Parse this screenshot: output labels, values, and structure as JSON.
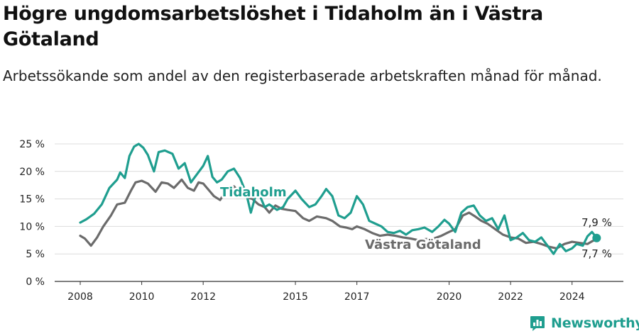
{
  "header": {
    "title": "Högre ungdomsarbetslöshet i Tidaholm än i Västra Götaland",
    "subtitle": "Arbetssökande som andel av den registerbaserade arbetskraften månad för månad."
  },
  "brand": {
    "name": "Newsworthy",
    "icon": "newsworthy-logo-icon",
    "color": "#1f9e8f"
  },
  "chart_data": {
    "type": "line",
    "title": "Högre ungdomsarbetslöshet i Tidaholm än i Västra Götaland",
    "subtitle": "Arbetssökande som andel av den registerbaserade arbetskraften månad för månad.",
    "xlabel": "",
    "ylabel": "",
    "ylim": [
      0,
      25
    ],
    "y_ticks": [
      0,
      5,
      10,
      15,
      20,
      25
    ],
    "y_tick_labels": [
      "0 %",
      "5 %",
      "10 %",
      "15 %",
      "20 %",
      "25 %"
    ],
    "x_ticks": [
      2008,
      2010,
      2012,
      2015,
      2017,
      2020,
      2022,
      2024
    ],
    "x_tick_labels": [
      "2008",
      "2010",
      "2012",
      "2015",
      "2017",
      "2020",
      "2022",
      "2024"
    ],
    "xlim": [
      2008,
      2025
    ],
    "grid": true,
    "series": [
      {
        "name": "Tidaholm",
        "color": "#1f9e8f",
        "x": [
          2008.0,
          2008.2,
          2008.45,
          2008.7,
          2008.95,
          2009.2,
          2009.3,
          2009.45,
          2009.6,
          2009.75,
          2009.9,
          2010.05,
          2010.2,
          2010.4,
          2010.55,
          2010.75,
          2011.0,
          2011.2,
          2011.4,
          2011.6,
          2011.8,
          2012.0,
          2012.15,
          2012.3,
          2012.45,
          2012.6,
          2012.8,
          2013.0,
          2013.2,
          2013.4,
          2013.55,
          2013.75,
          2013.85,
          2014.0,
          2014.15,
          2014.4,
          2014.6,
          2014.75,
          2015.0,
          2015.2,
          2015.45,
          2015.65,
          2015.85,
          2016.0,
          2016.2,
          2016.4,
          2016.6,
          2016.8,
          2017.0,
          2017.2,
          2017.4,
          2017.6,
          2017.8,
          2018.0,
          2018.2,
          2018.4,
          2018.6,
          2018.8,
          2019.0,
          2019.2,
          2019.45,
          2019.65,
          2019.85,
          2020.0,
          2020.2,
          2020.4,
          2020.6,
          2020.8,
          2021.0,
          2021.2,
          2021.4,
          2021.6,
          2021.8,
          2022.0,
          2022.2,
          2022.4,
          2022.6,
          2022.8,
          2023.0,
          2023.2,
          2023.4,
          2023.6,
          2023.8,
          2024.0,
          2024.15,
          2024.35,
          2024.5,
          2024.65,
          2024.8
        ],
        "values": [
          10.7,
          11.3,
          12.3,
          14.0,
          17.0,
          18.5,
          19.8,
          18.8,
          22.8,
          24.5,
          25.0,
          24.3,
          23.0,
          20.0,
          23.5,
          23.8,
          23.2,
          20.5,
          21.5,
          18.0,
          19.5,
          21.0,
          22.8,
          19.0,
          18.0,
          18.5,
          20.0,
          20.5,
          18.8,
          16.0,
          12.5,
          16.5,
          15.5,
          13.5,
          14.0,
          13.0,
          13.5,
          15.0,
          16.5,
          15.0,
          13.5,
          14.0,
          15.5,
          16.8,
          15.5,
          12.0,
          11.5,
          12.5,
          15.5,
          14.0,
          11.0,
          10.5,
          10.0,
          9.0,
          8.8,
          9.2,
          8.5,
          9.3,
          9.5,
          9.8,
          9.0,
          10.0,
          11.2,
          10.5,
          9.0,
          12.5,
          13.5,
          13.8,
          12.0,
          11.0,
          11.5,
          9.5,
          12.0,
          7.5,
          8.0,
          8.8,
          7.5,
          7.2,
          8.0,
          6.5,
          5.0,
          6.8,
          5.5,
          6.0,
          6.8,
          6.5,
          8.2,
          9.0,
          7.9
        ]
      },
      {
        "name": "Västra Götaland",
        "color": "#6b6b6b",
        "x": [
          2008.0,
          2008.15,
          2008.35,
          2008.55,
          2008.75,
          2009.0,
          2009.2,
          2009.45,
          2009.65,
          2009.8,
          2010.0,
          2010.2,
          2010.45,
          2010.65,
          2010.85,
          2011.05,
          2011.3,
          2011.5,
          2011.7,
          2011.85,
          2012.0,
          2012.2,
          2012.35,
          2012.55,
          2012.8,
          2013.0,
          2013.2,
          2013.45,
          2013.6,
          2013.8,
          2014.0,
          2014.15,
          2014.35,
          2014.55,
          2014.75,
          2015.0,
          2015.25,
          2015.45,
          2015.7,
          2016.0,
          2016.2,
          2016.45,
          2016.65,
          2016.85,
          2017.0,
          2017.25,
          2017.5,
          2017.75,
          2018.0,
          2018.25,
          2018.5,
          2018.75,
          2019.0,
          2019.25,
          2019.5,
          2019.75,
          2020.0,
          2020.2,
          2020.45,
          2020.65,
          2020.85,
          2021.05,
          2021.25,
          2021.5,
          2021.75,
          2022.0,
          2022.25,
          2022.5,
          2022.75,
          2023.0,
          2023.25,
          2023.5,
          2023.75,
          2024.0,
          2024.25,
          2024.5,
          2024.65,
          2024.8
        ],
        "values": [
          8.3,
          7.8,
          6.5,
          8.0,
          10.0,
          12.0,
          14.0,
          14.3,
          16.5,
          18.0,
          18.3,
          17.8,
          16.3,
          18.0,
          17.8,
          17.0,
          18.5,
          17.0,
          16.5,
          18.0,
          17.8,
          16.5,
          15.5,
          14.8,
          17.0,
          17.3,
          16.0,
          15.2,
          15.0,
          14.0,
          13.5,
          12.5,
          13.8,
          13.2,
          13.0,
          12.8,
          11.5,
          11.0,
          11.8,
          11.5,
          11.0,
          10.0,
          9.8,
          9.5,
          10.0,
          9.5,
          8.8,
          8.3,
          8.5,
          8.3,
          8.0,
          7.8,
          7.5,
          7.7,
          7.8,
          8.3,
          9.0,
          9.5,
          12.0,
          12.5,
          11.8,
          11.0,
          10.5,
          9.5,
          8.5,
          8.0,
          7.8,
          7.0,
          7.2,
          6.8,
          6.3,
          6.0,
          6.8,
          7.2,
          7.0,
          6.8,
          7.3,
          7.7
        ]
      }
    ],
    "series_labels": [
      "Tidaholm",
      "Västra Götaland"
    ],
    "end_labels": [
      "7,9 %",
      "7,7 %"
    ]
  }
}
